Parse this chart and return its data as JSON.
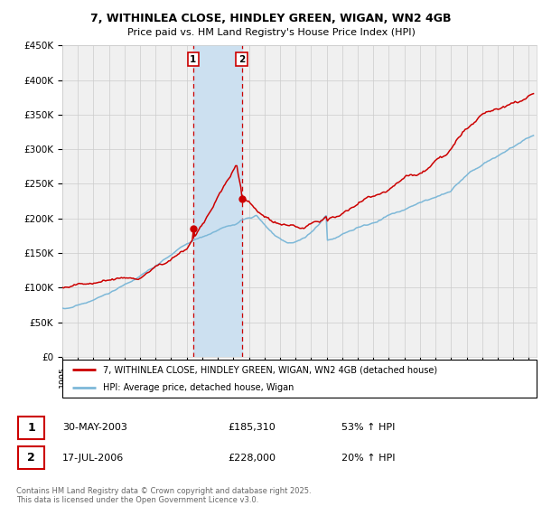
{
  "title_line1": "7, WITHINLEA CLOSE, HINDLEY GREEN, WIGAN, WN2 4GB",
  "title_line2": "Price paid vs. HM Land Registry's House Price Index (HPI)",
  "ylabel_ticks": [
    "£0",
    "£50K",
    "£100K",
    "£150K",
    "£200K",
    "£250K",
    "£300K",
    "£350K",
    "£400K",
    "£450K"
  ],
  "ytick_values": [
    0,
    50000,
    100000,
    150000,
    200000,
    250000,
    300000,
    350000,
    400000,
    450000
  ],
  "xlim_start": 1995.0,
  "xlim_end": 2025.5,
  "ylim": [
    0,
    450000
  ],
  "transaction1": {
    "date": 2003.41,
    "price": 185310,
    "label": "1",
    "date_str": "30-MAY-2003"
  },
  "transaction2": {
    "date": 2006.54,
    "price": 228000,
    "label": "2",
    "date_str": "17-JUL-2006"
  },
  "highlight_color": "#cce0f0",
  "red_color": "#cc0000",
  "blue_color": "#7db8d8",
  "grid_color": "#cccccc",
  "background_color": "#f0f0f0",
  "legend_label_red": "7, WITHINLEA CLOSE, HINDLEY GREEN, WIGAN, WN2 4GB (detached house)",
  "legend_label_blue": "HPI: Average price, detached house, Wigan",
  "footer": "Contains HM Land Registry data © Crown copyright and database right 2025.\nThis data is licensed under the Open Government Licence v3.0.",
  "table_rows": [
    {
      "num": "1",
      "date": "30-MAY-2003",
      "price": "£185,310",
      "pct": "53% ↑ HPI"
    },
    {
      "num": "2",
      "date": "17-JUL-2006",
      "price": "£228,000",
      "pct": "20% ↑ HPI"
    }
  ]
}
